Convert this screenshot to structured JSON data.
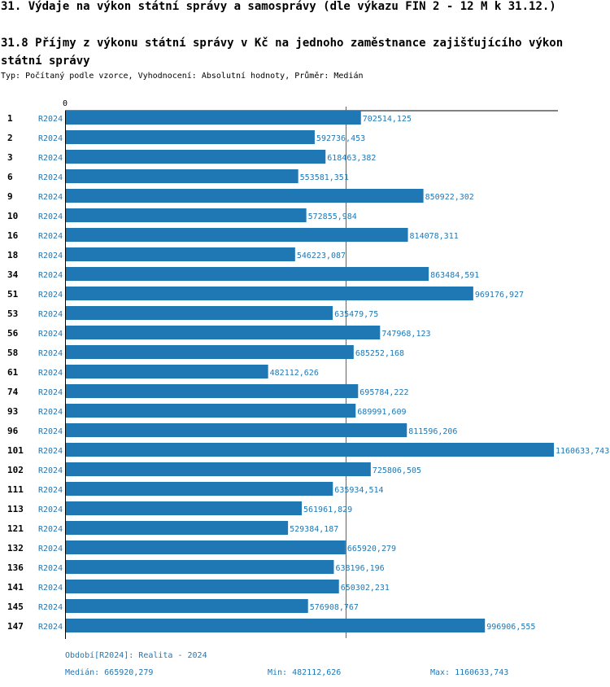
{
  "header": {
    "title": "31. Výdaje na výkon státní správy a samosprávy (dle výkazu FIN 2 - 12 M k 31.12.)",
    "subtitle_title": "31.8 Příjmy z výkonu státní správy v Kč na jednoho zaměstnance zajišťujícího výkon státní správy",
    "description": "Typ: Počítaný podle vzorce, Vyhodnocení: Absolutní hodnoty, Průměr: Medián"
  },
  "colors": {
    "bar": "#1f77b4",
    "label": "#1f77b4",
    "median_line": "#1f77b4",
    "axis": "#000000"
  },
  "chart_data": {
    "type": "bar",
    "orientation": "horizontal",
    "axis_zero_label": "0",
    "categories": [
      "1",
      "2",
      "3",
      "6",
      "9",
      "10",
      "16",
      "18",
      "34",
      "51",
      "53",
      "56",
      "58",
      "61",
      "74",
      "93",
      "96",
      "101",
      "102",
      "111",
      "113",
      "121",
      "132",
      "136",
      "141",
      "145",
      "147"
    ],
    "series_label": "R2024",
    "values": [
      702514.125,
      592736.453,
      618463.382,
      553581.351,
      850922.302,
      572855.984,
      814078.311,
      546223.087,
      863484.591,
      969176.927,
      635479.75,
      747968.123,
      685252.168,
      482112.626,
      695784.222,
      689991.609,
      811596.206,
      1160633.743,
      725806.505,
      635934.514,
      561961.829,
      529384.187,
      665920.279,
      638196.196,
      650302.231,
      576908.767,
      996906.555
    ],
    "value_labels": [
      "702514,125",
      "592736,453",
      "618463,382",
      "553581,351",
      "850922,302",
      "572855,984",
      "814078,311",
      "546223,087",
      "863484,591",
      "969176,927",
      "635479,75",
      "747968,123",
      "685252,168",
      "482112,626",
      "695784,222",
      "689991,609",
      "811596,206",
      "1160633,743",
      "725806,505",
      "635934,514",
      "561961,829",
      "529384,187",
      "665920,279",
      "638196,196",
      "650302,231",
      "576908,767",
      "996906,555"
    ],
    "median": 665920.279,
    "xlim": [
      0,
      1160633.743
    ]
  },
  "footer": {
    "period": "Období[R2024]: Realita - 2024",
    "median": "Medián: 665920,279",
    "min": "Min: 482112,626",
    "max": "Max: 1160633,743"
  }
}
